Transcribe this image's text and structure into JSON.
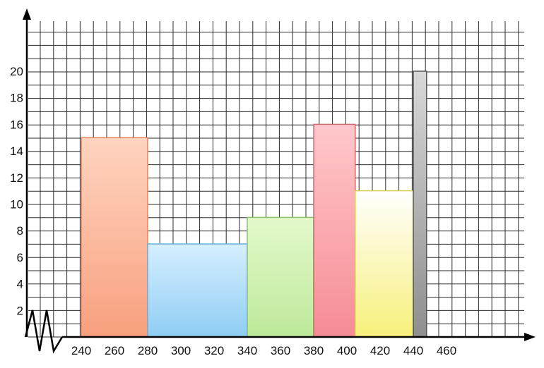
{
  "chart_data": {
    "type": "histogram",
    "title": "",
    "xlabel": "",
    "ylabel": "",
    "x_axis_broken": true,
    "grid": true,
    "xlim": [
      220,
      480
    ],
    "ylim": [
      0,
      23
    ],
    "x_ticks": [
      240,
      260,
      280,
      300,
      320,
      340,
      360,
      380,
      400,
      420,
      440,
      460
    ],
    "y_ticks": [
      2,
      4,
      6,
      8,
      10,
      12,
      14,
      16,
      18,
      20
    ],
    "bars": [
      {
        "x_start": 240,
        "x_end": 280,
        "value": 15,
        "color": "#f8a07e",
        "color_light": "#ffd4c0",
        "edge": "#e8825e"
      },
      {
        "x_start": 280,
        "x_end": 340,
        "value": 7,
        "color": "#8fcdf4",
        "color_light": "#d6efff",
        "edge": "#6aaed8"
      },
      {
        "x_start": 340,
        "x_end": 380,
        "value": 9,
        "color": "#bde99a",
        "color_light": "#e4f9cc",
        "edge": "#8cc26a"
      },
      {
        "x_start": 380,
        "x_end": 405,
        "value": 16,
        "color": "#f68c94",
        "color_light": "#ffc8cc",
        "edge": "#d86670"
      },
      {
        "x_start": 405,
        "x_end": 440,
        "value": 11,
        "color": "#f7f07a",
        "color_light": "#ffffff",
        "edge": "#d8cf5a"
      },
      {
        "x_start": 440,
        "x_end": 448,
        "value": 20,
        "color": "#8e8e8e",
        "color_light": "#d8d8d8",
        "edge": "#555555"
      }
    ]
  }
}
